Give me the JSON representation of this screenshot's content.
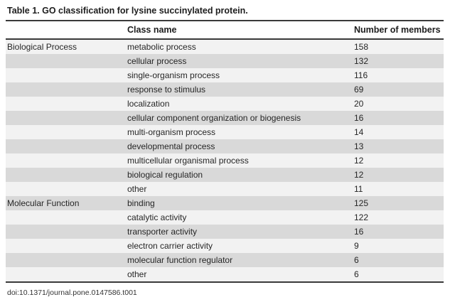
{
  "title": "Table 1. GO classification for lysine succinylated protein.",
  "columns": {
    "category": "",
    "class_name": "Class name",
    "members": "Number of members"
  },
  "sections": [
    {
      "category": "Biological Process",
      "rows": [
        {
          "class": "metabolic process",
          "members": "158"
        },
        {
          "class": "cellular process",
          "members": "132"
        },
        {
          "class": "single-organism process",
          "members": "116"
        },
        {
          "class": "response to stimulus",
          "members": "69"
        },
        {
          "class": "localization",
          "members": "20"
        },
        {
          "class": "cellular component organization or biogenesis",
          "members": "16"
        },
        {
          "class": "multi-organism process",
          "members": "14"
        },
        {
          "class": "developmental process",
          "members": "13"
        },
        {
          "class": "multicellular organismal process",
          "members": "12"
        },
        {
          "class": "biological regulation",
          "members": "12"
        },
        {
          "class": "other",
          "members": "11"
        }
      ]
    },
    {
      "category": "Molecular Function",
      "rows": [
        {
          "class": "binding",
          "members": "125"
        },
        {
          "class": "catalytic activity",
          "members": "122"
        },
        {
          "class": "transporter activity",
          "members": "16"
        },
        {
          "class": "electron carrier activity",
          "members": "9"
        },
        {
          "class": "molecular function regulator",
          "members": "6"
        },
        {
          "class": "other",
          "members": "6"
        }
      ]
    }
  ],
  "footer": "doi:10.1371/journal.pone.0147586.t001",
  "colors": {
    "row_light": "#f2f2f2",
    "row_gray": "#d9d9d9",
    "rule": "#3a3a3a"
  }
}
